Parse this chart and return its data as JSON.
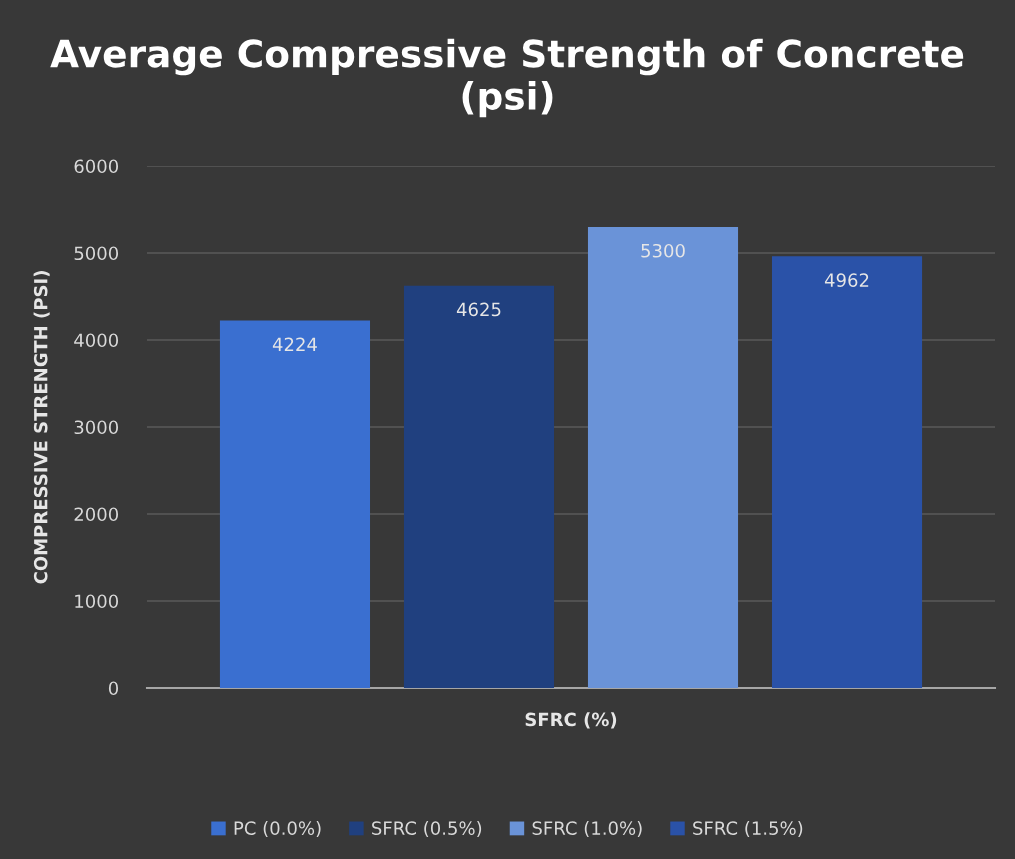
{
  "chart_data": {
    "type": "bar",
    "title": "Average Compressive Strength of Concrete (psi)",
    "xlabel": "SFRC (%)",
    "ylabel": "COMPRESSIVE STRENGTH (PSI)",
    "categories": [
      null
    ],
    "series": [
      {
        "name": "PC (0.0%)",
        "color": "#3a6fd0",
        "values": [
          4224
        ]
      },
      {
        "name": "SFRC (0.5%)",
        "color": "#20407f",
        "values": [
          4625
        ]
      },
      {
        "name": "SFRC (1.0%)",
        "color": "#6a93d8",
        "values": [
          5300
        ]
      },
      {
        "name": "SFRC (1.5%)",
        "color": "#2a52a8",
        "values": [
          4962
        ]
      }
    ],
    "ylim": [
      0,
      6000
    ],
    "yticks": [
      0,
      1000,
      2000,
      3000,
      4000,
      5000,
      6000
    ],
    "grid": "y",
    "legend": "bottom",
    "data_labels": true
  }
}
